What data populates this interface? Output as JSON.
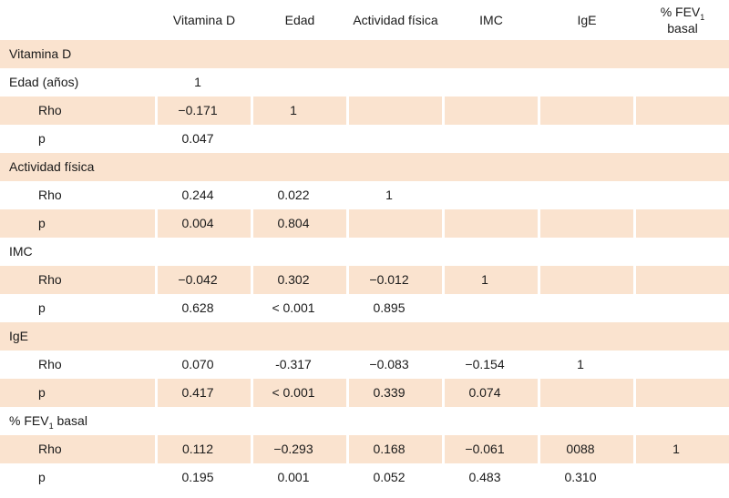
{
  "theme": {
    "shaded_row_color": "#fae3cf",
    "text_color": "#1a1a1a",
    "background_color": "#ffffff"
  },
  "table": {
    "header": {
      "col1": "Vitamina D",
      "col2": "Edad",
      "col3": "Actividad física",
      "col4": "IMC",
      "col5": "IgE",
      "col6_fev": {
        "prefix": "% FEV",
        "sub": "1",
        "line2": "basal"
      }
    },
    "rows": [
      {
        "kind": "section",
        "shaded": true,
        "label": "Vitamina D"
      },
      {
        "kind": "data",
        "shaded": false,
        "indent": false,
        "label": "Edad (años)",
        "values": [
          "1",
          "",
          "",
          "",
          "",
          ""
        ]
      },
      {
        "kind": "data",
        "shaded": true,
        "indent": true,
        "label": "Rho",
        "values": [
          "−0.171",
          "1",
          "",
          "",
          "",
          ""
        ]
      },
      {
        "kind": "data",
        "shaded": false,
        "indent": true,
        "label": "p",
        "values": [
          "0.047",
          "",
          "",
          "",
          "",
          ""
        ]
      },
      {
        "kind": "section",
        "shaded": true,
        "label": "Actividad física"
      },
      {
        "kind": "data",
        "shaded": false,
        "indent": true,
        "label": "Rho",
        "values": [
          "0.244",
          "0.022",
          "1",
          "",
          "",
          ""
        ]
      },
      {
        "kind": "data",
        "shaded": true,
        "indent": true,
        "label": "p",
        "values": [
          "0.004",
          "0.804",
          "",
          "",
          "",
          ""
        ]
      },
      {
        "kind": "section",
        "shaded": false,
        "label": "IMC"
      },
      {
        "kind": "data",
        "shaded": true,
        "indent": true,
        "label": "Rho",
        "values": [
          "−0.042",
          "0.302",
          "−0.012",
          "1",
          "",
          ""
        ]
      },
      {
        "kind": "data",
        "shaded": false,
        "indent": true,
        "label": "p",
        "values": [
          "0.628",
          "< 0.001",
          "0.895",
          "",
          "",
          ""
        ]
      },
      {
        "kind": "section",
        "shaded": true,
        "label": "IgE"
      },
      {
        "kind": "data",
        "shaded": false,
        "indent": true,
        "label": "Rho",
        "values": [
          "0.070",
          "-0.317",
          "−0.083",
          "−0.154",
          "1",
          ""
        ]
      },
      {
        "kind": "data",
        "shaded": true,
        "indent": true,
        "label": "p",
        "values": [
          "0.417",
          "< 0.001",
          "0.339",
          "0.074",
          "",
          ""
        ]
      },
      {
        "kind": "section",
        "shaded": false,
        "label_fev": {
          "prefix": "% FEV",
          "sub": "1",
          "suffix": " basal"
        }
      },
      {
        "kind": "data",
        "shaded": true,
        "indent": true,
        "label": "Rho",
        "values": [
          "0.112",
          "−0.293",
          "0.168",
          "−0.061",
          "0088",
          "1"
        ]
      },
      {
        "kind": "data",
        "shaded": false,
        "indent": true,
        "label": "p",
        "values": [
          "0.195",
          "0.001",
          "0.052",
          "0.483",
          "0.310",
          ""
        ]
      }
    ]
  }
}
